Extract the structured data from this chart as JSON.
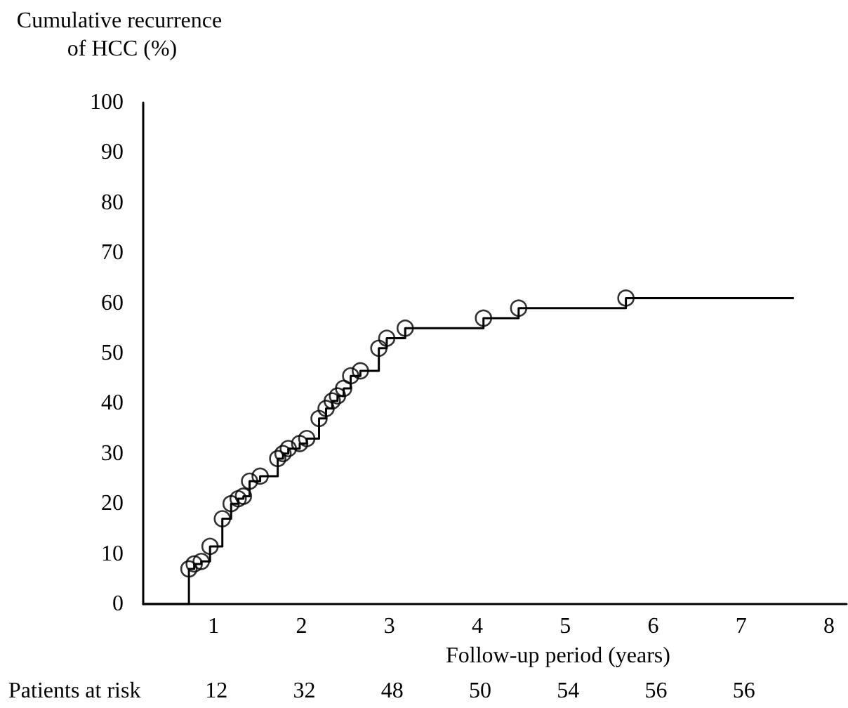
{
  "chart_data": {
    "type": "step",
    "ylabel": "Cumulative recurrence of HCC (%)",
    "xlabel": "Follow-up period (years)",
    "xlim": [
      0.2,
      8.2
    ],
    "xticks": [
      1,
      2,
      3,
      4,
      5,
      6,
      7,
      8
    ],
    "ylim": [
      0,
      100
    ],
    "yticks": [
      0,
      10,
      20,
      30,
      40,
      50,
      60,
      70,
      80,
      90,
      100
    ],
    "grid": false,
    "series": [
      {
        "marker": "none",
        "color": "#000000",
        "x": [
          0.2,
          0.72,
          0.78,
          0.86,
          0.96,
          1.1,
          1.2,
          1.28,
          1.34,
          1.41,
          1.53,
          1.73,
          1.79,
          1.85,
          1.98,
          2.06,
          2.2,
          2.28,
          2.35,
          2.41,
          2.48,
          2.56,
          2.67,
          2.88,
          2.97,
          3.18,
          4.07,
          4.47,
          5.69,
          7.6
        ],
        "values": [
          0,
          7,
          8,
          8.5,
          11.5,
          17,
          20,
          21,
          21.5,
          24.5,
          25.5,
          29,
          30,
          31,
          32,
          33,
          37,
          39,
          40.5,
          41.5,
          43,
          45.5,
          46.5,
          51,
          53,
          55,
          57,
          59,
          61,
          61
        ]
      },
      {
        "type": "scatter",
        "marker": "circle",
        "color": "#000000",
        "x": [
          0.72,
          0.78,
          0.86,
          0.96,
          1.1,
          1.2,
          1.28,
          1.34,
          1.41,
          1.53,
          1.73,
          1.79,
          1.85,
          1.98,
          2.06,
          2.2,
          2.28,
          2.35,
          2.41,
          2.48,
          2.56,
          2.67,
          2.88,
          2.97,
          3.18,
          4.07,
          4.47,
          5.69
        ],
        "values": [
          7,
          8,
          8.5,
          11.5,
          17,
          20,
          21,
          21.5,
          24.5,
          25.5,
          29,
          30,
          31,
          32,
          33,
          37,
          39,
          40.5,
          41.5,
          43,
          45.5,
          46.5,
          51,
          53,
          55,
          57,
          59,
          61
        ]
      }
    ],
    "annotations": [
      "Patients at risk",
      "12",
      "32",
      "48",
      "50",
      "54",
      "56",
      "56"
    ]
  }
}
